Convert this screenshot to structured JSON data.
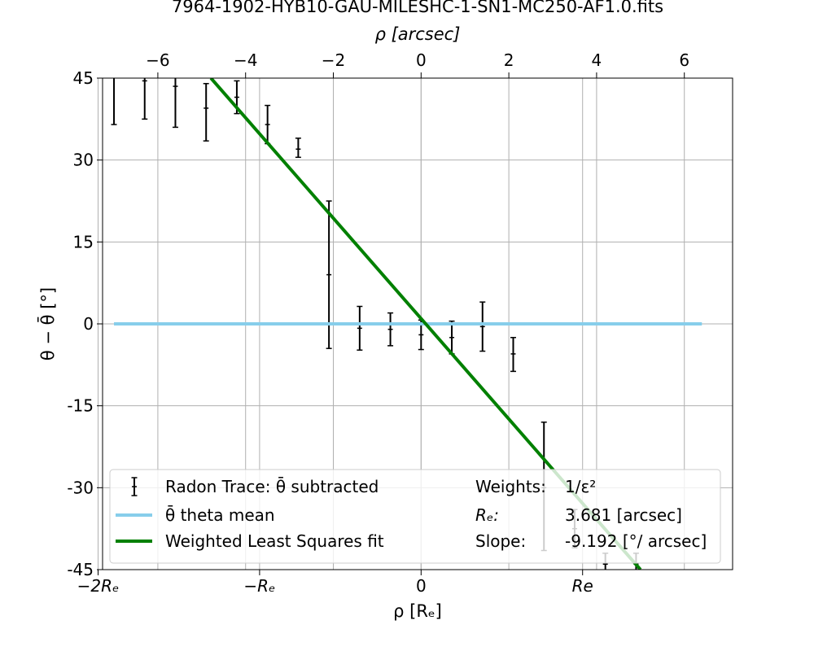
{
  "chart_data": {
    "type": "scatter",
    "title": "7964-1902-HYB10-GAU-MILESHC-1-SN1-MC250-AF1.0.fits",
    "top_xlabel": "ρ [arcsec]",
    "xlabel": "ρ [Rₑ]",
    "ylabel": "θ − θ̄ [°]",
    "top_xlim": [
      -7.26,
      7.1
    ],
    "ylim": [
      -45,
      45
    ],
    "grid": true,
    "y_ticks": [
      45,
      30,
      15,
      0,
      -15,
      -30,
      -45
    ],
    "top_x_ticks": [
      -6,
      -4,
      -2,
      0,
      2,
      4,
      6
    ],
    "bottom_x_ticks": [
      {
        "label": "−2Rₑ",
        "value": -7.362
      },
      {
        "label": "−Rₑ",
        "value": -3.681
      },
      {
        "label": "0",
        "value": 0
      },
      {
        "label": "Re",
        "value": 3.681
      }
    ],
    "legend_position": "lower center",
    "series": [
      {
        "name": "Radon Trace: θ̄ subtracted",
        "kind": "errorbar",
        "color": "#000000",
        "x": [
          -7.0,
          -6.3,
          -5.6,
          -4.9,
          -4.2,
          -3.5,
          -2.8,
          -2.1,
          -1.4,
          -0.7,
          0.0,
          0.7,
          1.4,
          2.1,
          2.8,
          3.5,
          4.2,
          4.9
        ],
        "y": [
          46.0,
          44.5,
          43.5,
          39.5,
          41.5,
          36.5,
          32.0,
          9.0,
          -0.8,
          -1.0,
          -2.0,
          -2.5,
          -0.5,
          -5.5,
          -30.0,
          -37.5,
          -44.0,
          -44.0
        ],
        "yerr_low": [
          9.5,
          7.0,
          7.5,
          6.0,
          3.0,
          3.5,
          1.5,
          13.5,
          4.0,
          3.0,
          2.7,
          3.0,
          4.5,
          3.2,
          11.5,
          3.5,
          2.0,
          2.0
        ],
        "yerr_high": [
          4.0,
          3.0,
          3.0,
          4.5,
          3.0,
          3.5,
          2.0,
          13.5,
          4.0,
          3.0,
          2.7,
          3.0,
          4.5,
          3.0,
          12.0,
          3.5,
          2.0,
          2.0
        ]
      },
      {
        "name": "θ̄ theta mean",
        "kind": "line",
        "color": "#87ceeb",
        "x": [
          -7.0,
          6.4
        ],
        "y": [
          0,
          0
        ]
      },
      {
        "name": "Weighted Least Squares fit",
        "kind": "line",
        "color": "#008000",
        "slope": -9.192,
        "intercept": 0.8,
        "x": [
          -4.79,
          5.0
        ],
        "y": [
          45,
          -45
        ]
      }
    ],
    "legend": {
      "entries": [
        {
          "label": "Radon Trace: θ̄ subtracted",
          "marker": "errorbar"
        },
        {
          "label": "θ̄ theta mean",
          "marker": "line",
          "color": "#87ceeb"
        },
        {
          "label": "Weighted Least Squares fit",
          "marker": "line",
          "color": "#008000"
        }
      ],
      "info": [
        {
          "key": "Weights:",
          "value": "1/ε²"
        },
        {
          "key": "Rₑ:",
          "value": "3.681 [arcsec]"
        },
        {
          "key": "Slope:",
          "value": "-9.192 [°/ arcsec]"
        }
      ]
    }
  }
}
